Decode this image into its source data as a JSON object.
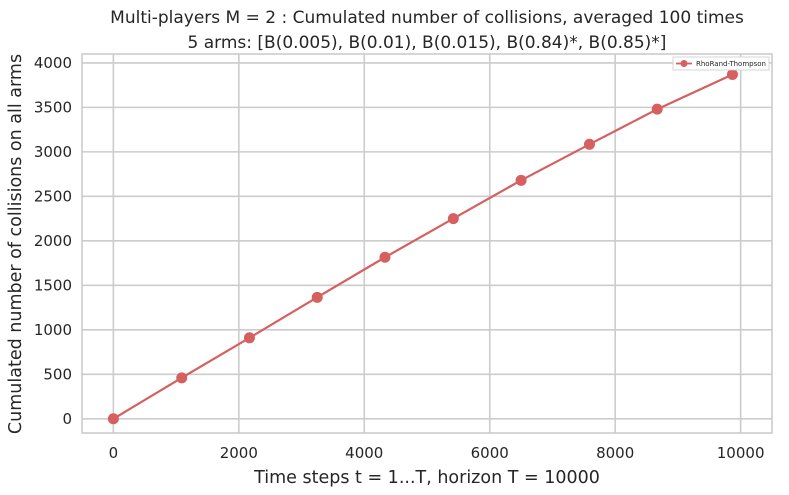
{
  "chart_data": {
    "type": "line",
    "title": "Multi-players M = 2 : Cumulated number of collisions, averaged 100 times",
    "subtitle": "5 arms: [B(0.005), B(0.01), B(0.015), B(0.84)*, B(0.85)*]",
    "xlabel": "Time steps t = 1...T, horizon T = 10000",
    "ylabel": "Cumulated number of collisions on all arms",
    "xlim": [
      -500,
      10500
    ],
    "ylim": [
      -160,
      4100
    ],
    "xticks": [
      0,
      2000,
      4000,
      6000,
      8000,
      10000
    ],
    "yticks": [
      0,
      500,
      1000,
      1500,
      2000,
      2500,
      3000,
      3500,
      4000
    ],
    "grid": true,
    "legend_position": "top-right",
    "series": [
      {
        "name": "RhoRand-Thompson",
        "color": "#d65f5f",
        "marker": "circle",
        "x": [
          0,
          1090,
          2170,
          3250,
          4330,
          5420,
          6500,
          7590,
          8670,
          9870
        ],
        "y": [
          0,
          460,
          910,
          1365,
          1815,
          2250,
          2680,
          3085,
          3480,
          3870
        ]
      }
    ]
  }
}
